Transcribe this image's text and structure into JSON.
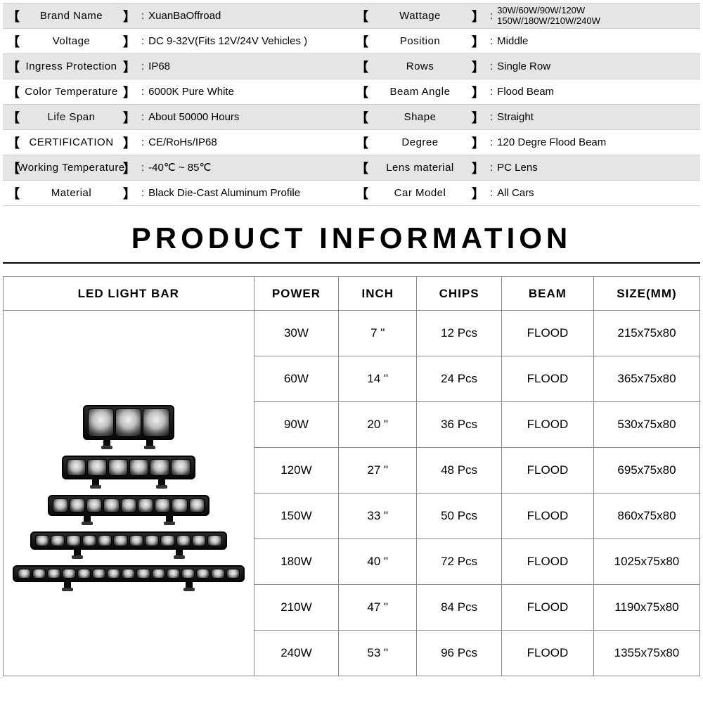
{
  "specs": [
    {
      "label": "Brand  Name",
      "value": "XuanBaOffroad"
    },
    {
      "label": "Wattage",
      "value": "30W/60W/90W/120W\n150W/180W/210W/240W",
      "small": true
    },
    {
      "label": "Voltage",
      "value": "DC 9-32V(Fits 12V/24V Vehicles )"
    },
    {
      "label": "Position",
      "value": "Middle"
    },
    {
      "label": "Ingress Protection",
      "value": "IP68"
    },
    {
      "label": "Rows",
      "value": "Single Row"
    },
    {
      "label": "Color   Temperature",
      "value": "6000K Pure White"
    },
    {
      "label": "Beam  Angle",
      "value": "Flood Beam"
    },
    {
      "label": "Life  Span",
      "value": "About 50000 Hours"
    },
    {
      "label": "Shape",
      "value": "Straight"
    },
    {
      "label": "CERTIFICATION",
      "value": "CE/RoHs/IP68"
    },
    {
      "label": "Degree",
      "value": "120 Degre Flood Beam"
    },
    {
      "label": "Working Temperature",
      "value": "-40℃ ~ 85℃"
    },
    {
      "label": "Lens material",
      "value": "PC Lens"
    },
    {
      "label": "Material",
      "value": "Black Die-Cast Aluminum Profile"
    },
    {
      "label": "Car  Model",
      "value": "All Cars"
    }
  ],
  "title": "PRODUCT  INFORMATION",
  "table": {
    "headers": [
      "LED LIGHT BAR",
      "POWER",
      "INCH",
      "CHIPS",
      "BEAM",
      "SIZE(MM)"
    ],
    "rows": [
      {
        "power": "30W",
        "inch": "7 \"",
        "chips": "12 Pcs",
        "beam": "FLOOD",
        "size": "215x75x80"
      },
      {
        "power": "60W",
        "inch": "14 \"",
        "chips": "24 Pcs",
        "beam": "FLOOD",
        "size": "365x75x80"
      },
      {
        "power": "90W",
        "inch": "20 \"",
        "chips": "36 Pcs",
        "beam": "FLOOD",
        "size": "530x75x80"
      },
      {
        "power": "120W",
        "inch": "27 \"",
        "chips": "48 Pcs",
        "beam": "FLOOD",
        "size": "695x75x80"
      },
      {
        "power": "150W",
        "inch": "33 \"",
        "chips": "50 Pcs",
        "beam": "FLOOD",
        "size": "860x75x80"
      },
      {
        "power": "180W",
        "inch": "40 \"",
        "chips": "72 Pcs",
        "beam": "FLOOD",
        "size": "1025x75x80"
      },
      {
        "power": "210W",
        "inch": "47 \"",
        "chips": "84 Pcs",
        "beam": "FLOOD",
        "size": "1190x75x80"
      },
      {
        "power": "240W",
        "inch": "53 \"",
        "chips": "96 Pcs",
        "beam": "FLOOD",
        "size": "1355x75x80"
      }
    ],
    "lightbar_leds": [
      3,
      6,
      9,
      12,
      15
    ]
  },
  "colors": {
    "row_bg_alt": "#e5e5e5",
    "row_bg": "#ffffff",
    "border": "#888888",
    "text": "#000000"
  }
}
